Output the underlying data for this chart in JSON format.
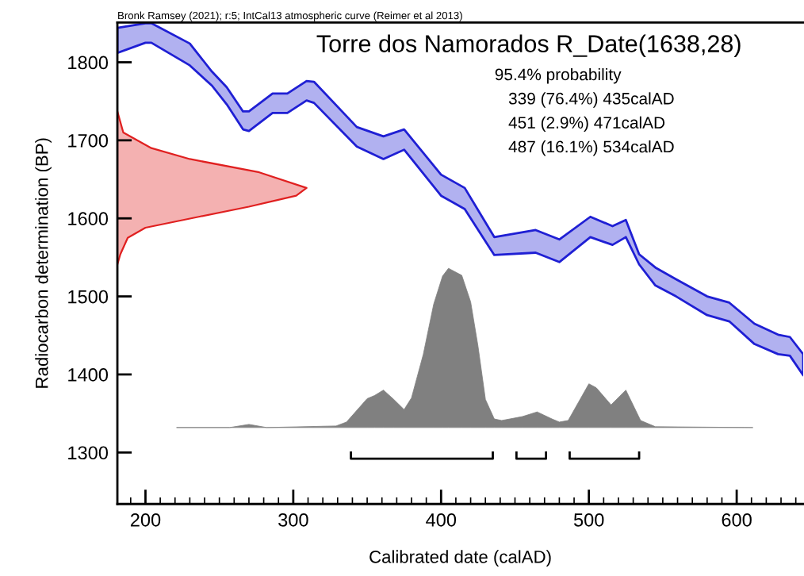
{
  "chart_data": {
    "type": "area",
    "title": "Torre dos Namorados R_Date(1638,28)",
    "subtitle": "Bronk Ramsey (2021); r:5; IntCal13 atmospheric curve (Reimer et al 2013)",
    "xlabel": "Calibrated date (calAD)",
    "ylabel": "Radiocarbon determination (BP)",
    "annotations": [
      "95.4% probability",
      "339 (76.4%) 435calAD",
      "451 (2.9%) 471calAD",
      "487 (16.1%) 534calAD"
    ],
    "xlim": [
      181,
      645
    ],
    "ylim": [
      1234,
      1851
    ],
    "xticks": [
      200,
      300,
      400,
      500,
      600
    ],
    "yticks": [
      1300,
      1400,
      1500,
      1600,
      1700,
      1800
    ],
    "grid": false,
    "legend": false,
    "series": [
      {
        "color": "#1f1fd4",
        "values": [
          null,
          null,
          null,
          null,
          null,
          null,
          null,
          null,
          null,
          null,
          null,
          null,
          null,
          null,
          null,
          null,
          null,
          null,
          null,
          null,
          null,
          null,
          null,
          null,
          null,
          null,
          null,
          null,
          null,
          null,
          null,
          null
        ],
        "x": [
          181,
          200,
          204,
          230,
          245,
          255,
          266,
          270,
          286,
          296,
          309,
          314,
          343,
          361,
          375,
          400,
          416,
          436,
          464,
          480,
          501,
          516,
          525,
          534,
          545,
          559,
          580,
          595,
          612,
          628,
          636,
          645
        ],
        "upper": [
          1844,
          1850,
          1850,
          1824,
          1788,
          1768,
          1737,
          1737,
          1760,
          1760,
          1776,
          1775,
          1717,
          1705,
          1714,
          1656,
          1639,
          1576,
          1585,
          1573,
          1602,
          1590,
          1598,
          1554,
          1537,
          1522,
          1500,
          1492,
          1465,
          1451,
          1448,
          1426
        ],
        "lower": [
          1812,
          1825,
          1825,
          1796,
          1770,
          1746,
          1714,
          1712,
          1735,
          1735,
          1751,
          1748,
          1692,
          1676,
          1688,
          1629,
          1612,
          1553,
          1556,
          1544,
          1576,
          1566,
          1576,
          1541,
          1514,
          1500,
          1476,
          1468,
          1439,
          1426,
          1424,
          1399
        ]
      },
      {
        "color": "#808080",
        "values": [
          null,
          null,
          null,
          null,
          null,
          null,
          null,
          null,
          null,
          null,
          null,
          null,
          null,
          null,
          null,
          null,
          null,
          null,
          null,
          null,
          null,
          null,
          null,
          null,
          null,
          null,
          null,
          null,
          null,
          null,
          null,
          null,
          null,
          null
        ],
        "x": [
          221,
          257,
          270,
          282,
          329,
          336,
          350,
          355,
          361,
          368,
          375,
          380,
          388,
          395,
          401,
          405,
          414,
          420,
          425,
          430,
          436,
          441,
          455,
          465,
          475,
          480,
          486,
          500,
          505,
          515,
          525,
          535,
          545,
          611
        ],
        "upper": [
          1332,
          1332,
          1336,
          1332,
          1334,
          1339,
          1369,
          1373,
          1380,
          1368,
          1355,
          1370,
          1426,
          1490,
          1526,
          1536,
          1527,
          1493,
          1436,
          1368,
          1343,
          1341,
          1346,
          1352,
          1343,
          1339,
          1341,
          1388,
          1383,
          1361,
          1380,
          1341,
          1333,
          1332
        ],
        "lower": [
          1332,
          1332,
          1332,
          1332,
          1332,
          1332,
          1332,
          1332,
          1332,
          1332,
          1332,
          1332,
          1332,
          1332,
          1332,
          1332,
          1332,
          1332,
          1332,
          1332,
          1332,
          1332,
          1332,
          1332,
          1332,
          1332,
          1332,
          1332,
          1332,
          1332,
          1332,
          1332,
          1332,
          1332
        ]
      },
      {
        "color": "#e02020",
        "x": [
          181,
          183,
          188,
          200,
          236,
          270,
          302,
          309,
          277,
          230,
          204,
          185,
          181
        ],
        "values": [
          1541,
          1554,
          1575,
          1588,
          1602,
          1615,
          1629,
          1639,
          1659,
          1676,
          1690,
          1710,
          1737
        ]
      },
      {
        "type": "line",
        "color": "#000000",
        "x": [
          339,
          339,
          435,
          435,
          null,
          451,
          451,
          471,
          471,
          null,
          487,
          487,
          534,
          534
        ],
        "values": [
          1300,
          1292,
          1292,
          1300,
          null,
          1300,
          1292,
          1292,
          1300,
          null,
          1300,
          1292,
          1292,
          1300
        ]
      }
    ]
  }
}
